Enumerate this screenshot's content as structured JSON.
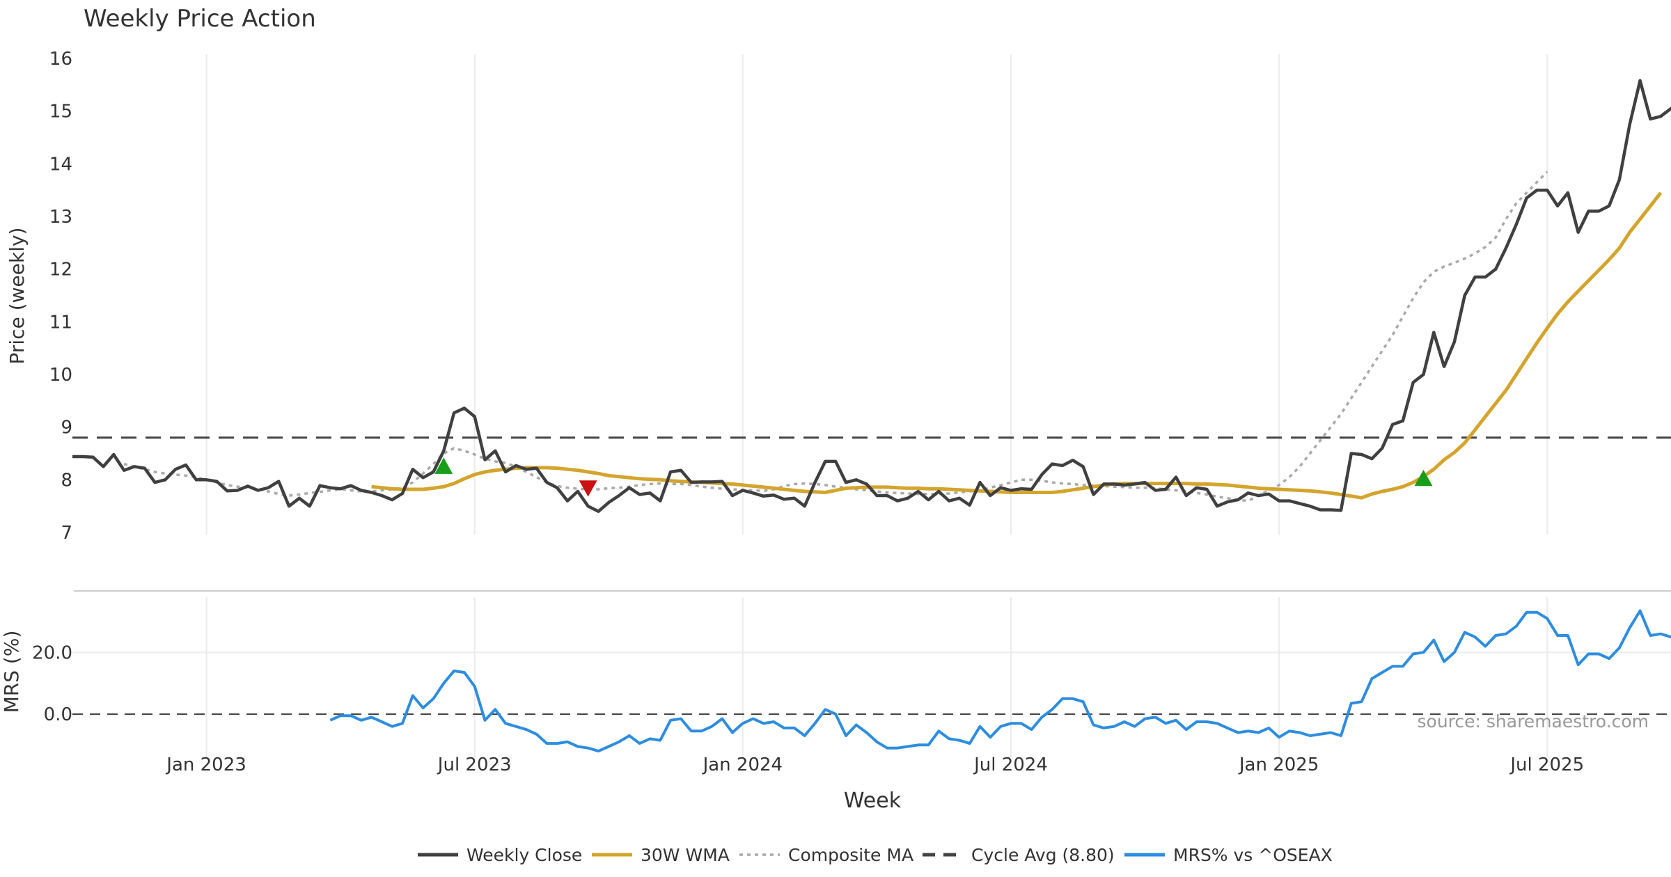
{
  "chart_data": {
    "type": "line",
    "title": "Weekly Price Action",
    "xlabel": "Week",
    "x_ticks": [
      "Jan 2023",
      "Jul 2023",
      "Jan 2024",
      "Jul 2024",
      "Jan 2025",
      "Jul 2025"
    ],
    "source": "source: sharemaestro.com",
    "colors": {
      "close": "#404040",
      "wma": "#d4a42c",
      "composite": "#aaaaaa",
      "cycle": "#444444",
      "mrs": "#2e8de0",
      "buy": "#1a9e1a",
      "sell": "#cc1111",
      "grid": "#ebebeb"
    },
    "price_panel": {
      "ylabel": "Price (weekly)",
      "ylim": [
        7,
        16
      ],
      "yticks": [
        "7",
        "8",
        "9",
        "10",
        "11",
        "12",
        "13",
        "14",
        "15",
        "16"
      ],
      "series": [
        {
          "name": "Weekly Close",
          "key": "close",
          "start": 0,
          "values": [
            8.44,
            8.44,
            8.43,
            8.25,
            8.48,
            8.18,
            8.25,
            8.22,
            7.95,
            8.0,
            8.2,
            8.28,
            8.0,
            8.0,
            7.97,
            7.79,
            7.8,
            7.88,
            7.8,
            7.85,
            7.97,
            7.5,
            7.65,
            7.5,
            7.89,
            7.85,
            7.83,
            7.89,
            7.8,
            7.76,
            7.7,
            7.62,
            7.74,
            8.2,
            8.04,
            8.15,
            8.55,
            9.27,
            9.36,
            9.2,
            8.38,
            8.55,
            8.15,
            8.27,
            8.2,
            8.22,
            7.95,
            7.85,
            7.6,
            7.78,
            7.5,
            7.4,
            7.57,
            7.7,
            7.85,
            7.72,
            7.75,
            7.6,
            8.15,
            8.18,
            7.95,
            7.96,
            7.96,
            7.97,
            7.7,
            7.8,
            7.75,
            7.69,
            7.71,
            7.63,
            7.65,
            7.5,
            7.95,
            8.35,
            8.35,
            7.95,
            8.0,
            7.92,
            7.7,
            7.7,
            7.6,
            7.65,
            7.78,
            7.62,
            7.78,
            7.6,
            7.65,
            7.52,
            7.95,
            7.7,
            7.85,
            7.8,
            7.83,
            7.82,
            8.1,
            8.3,
            8.27,
            8.37,
            8.25,
            7.72,
            7.92,
            7.92,
            7.9,
            7.92,
            7.95,
            7.8,
            7.82,
            8.05,
            7.7,
            7.85,
            7.82,
            7.5,
            7.58,
            7.62,
            7.75,
            7.7,
            7.73,
            7.6,
            7.6,
            7.55,
            7.5,
            7.43,
            7.43,
            7.42,
            8.5,
            8.48,
            8.4,
            8.6,
            9.05,
            9.12,
            9.85,
            10.0,
            10.8,
            10.15,
            10.62,
            11.5,
            11.85,
            11.85,
            12.0,
            12.4,
            12.85,
            13.35,
            13.5,
            13.5,
            13.2,
            13.45,
            12.7,
            13.1,
            13.1,
            13.2,
            13.7,
            14.75,
            15.58,
            14.85,
            14.9,
            15.05,
            15.15
          ]
        },
        {
          "name": "30W WMA",
          "key": "wma",
          "start": 29,
          "values": [
            7.87,
            7.85,
            7.83,
            7.82,
            7.82,
            7.82,
            7.84,
            7.87,
            7.93,
            8.02,
            8.1,
            8.15,
            8.18,
            8.2,
            8.22,
            8.23,
            8.23,
            8.23,
            8.22,
            8.2,
            8.18,
            8.15,
            8.12,
            8.08,
            8.06,
            8.04,
            8.02,
            8.01,
            8.0,
            7.98,
            7.97,
            7.96,
            7.95,
            7.94,
            7.93,
            7.92,
            7.9,
            7.88,
            7.86,
            7.84,
            7.82,
            7.8,
            7.78,
            7.77,
            7.76,
            7.8,
            7.84,
            7.85,
            7.86,
            7.86,
            7.86,
            7.85,
            7.84,
            7.84,
            7.83,
            7.83,
            7.82,
            7.81,
            7.8,
            7.79,
            7.78,
            7.77,
            7.76,
            7.76,
            7.76,
            7.76,
            7.76,
            7.78,
            7.81,
            7.84,
            7.87,
            7.9,
            7.92,
            7.93,
            7.93,
            7.93,
            7.93,
            7.93,
            7.93,
            7.93,
            7.92,
            7.92,
            7.91,
            7.9,
            7.88,
            7.86,
            7.84,
            7.83,
            7.82,
            7.81,
            7.8,
            7.79,
            7.77,
            7.75,
            7.72,
            7.69,
            7.66,
            7.73,
            7.78,
            7.82,
            7.87,
            7.95,
            8.06,
            8.2,
            8.38,
            8.52,
            8.7,
            8.95,
            9.2,
            9.45,
            9.7,
            10.0,
            10.3,
            10.6,
            10.88,
            11.15,
            11.38,
            11.58,
            11.78,
            11.98,
            12.18,
            12.4,
            12.7,
            12.95,
            13.2,
            13.45
          ]
        },
        {
          "name": "Composite MA",
          "key": "composite",
          "start": 5,
          "values": [
            8.3,
            8.25,
            8.2,
            8.15,
            8.12,
            8.1,
            8.08,
            8.05,
            8.0,
            7.95,
            7.9,
            7.87,
            7.85,
            7.82,
            7.78,
            7.73,
            7.7,
            7.72,
            7.75,
            7.77,
            7.8,
            7.82,
            7.8,
            7.78,
            7.78,
            7.8,
            7.82,
            7.85,
            7.95,
            8.12,
            8.3,
            8.5,
            8.6,
            8.55,
            8.48,
            8.4,
            8.35,
            8.32,
            8.25,
            8.15,
            8.05,
            7.95,
            7.88,
            7.85,
            7.83,
            7.82,
            7.82,
            7.84,
            7.85,
            7.87,
            7.9,
            7.92,
            7.93,
            7.92,
            7.92,
            7.9,
            7.87,
            7.85,
            7.83,
            7.82,
            7.81,
            7.8,
            7.79,
            7.82,
            7.88,
            7.92,
            7.93,
            7.92,
            7.9,
            7.87,
            7.85,
            7.82,
            7.8,
            7.78,
            7.76,
            7.75,
            7.74,
            7.73,
            7.73,
            7.73,
            7.74,
            7.76,
            7.78,
            7.8,
            7.85,
            7.9,
            7.95,
            8.0,
            8.0,
            7.98,
            7.95,
            7.93,
            7.92,
            7.9,
            7.89,
            7.88,
            7.87,
            7.86,
            7.85,
            7.85,
            7.84,
            7.82,
            7.8,
            7.78,
            7.75,
            7.72,
            7.68,
            7.65,
            7.62,
            7.6,
            7.7,
            7.8,
            7.9,
            8.05,
            8.25,
            8.5,
            8.75,
            9.0,
            9.25,
            9.55,
            9.85,
            10.15,
            10.45,
            10.75,
            11.1,
            11.45,
            11.75,
            11.95,
            12.05,
            12.12,
            12.2,
            12.3,
            12.42,
            12.6,
            12.95,
            13.25,
            13.45,
            13.65,
            13.85
          ]
        },
        {
          "name": "Cycle Avg (8.80)",
          "key": "cycle",
          "constant": 8.8
        }
      ],
      "markers": [
        {
          "type": "buy",
          "x": 36,
          "y": 8.25
        },
        {
          "type": "sell",
          "x": 50,
          "y": 7.85
        },
        {
          "type": "buy",
          "x": 131,
          "y": 8.02
        }
      ]
    },
    "mrs_panel": {
      "ylabel": "MRS (%)",
      "ylim": [
        -14,
        37
      ],
      "yticks": [
        "0.0",
        "20.0"
      ],
      "zero_line": 0,
      "series": [
        {
          "name": "MRS% vs ^OSEAX",
          "key": "mrs",
          "start": 25,
          "values": [
            -2,
            -0.5,
            -0.5,
            -2,
            -1,
            -2.5,
            -4,
            -3,
            6,
            2,
            5,
            10,
            14,
            13.5,
            9,
            -2,
            1.5,
            -3,
            -4,
            -5,
            -6.5,
            -9.5,
            -9.5,
            -9,
            -10.5,
            -11,
            -12,
            -10.5,
            -9,
            -7,
            -9.5,
            -8,
            -8.5,
            -2,
            -1.5,
            -5.5,
            -5.5,
            -4,
            -1.5,
            -6,
            -3,
            -1.5,
            -3,
            -2.5,
            -4.5,
            -4.5,
            -7,
            -3,
            1.5,
            0,
            -7,
            -3.5,
            -6,
            -9,
            -11,
            -11,
            -10.5,
            -10,
            -10,
            -5.5,
            -8,
            -8.5,
            -9.5,
            -4,
            -7.5,
            -4,
            -3,
            -3,
            -5,
            -1,
            1.5,
            5,
            5,
            4,
            -3.5,
            -4.5,
            -4,
            -2.5,
            -4,
            -1.5,
            -1,
            -3,
            -2,
            -5,
            -2.5,
            -2.5,
            -3,
            -4.5,
            -6,
            -5.5,
            -6,
            -4.5,
            -7.5,
            -5.5,
            -6,
            -7,
            -6.5,
            -6,
            -7,
            3.5,
            4,
            11.5,
            13.5,
            15.5,
            15.5,
            19.5,
            20,
            24,
            17,
            20,
            26.5,
            25,
            22,
            25.5,
            26,
            28.5,
            33,
            33,
            31,
            25.5,
            25.5,
            16,
            19.5,
            19.5,
            18,
            21.5,
            28,
            33.5,
            25.5,
            26,
            25,
            23
          ]
        }
      ]
    },
    "legend": [
      {
        "label": "Weekly Close",
        "key": "close",
        "style": "solid"
      },
      {
        "label": "30W WMA",
        "key": "wma",
        "style": "solid"
      },
      {
        "label": "Composite MA",
        "key": "composite",
        "style": "dotted"
      },
      {
        "label": "Cycle Avg (8.80)",
        "key": "cycle",
        "style": "dashed"
      },
      {
        "label": "MRS% vs ^OSEAX",
        "key": "mrs",
        "style": "solid"
      }
    ]
  }
}
